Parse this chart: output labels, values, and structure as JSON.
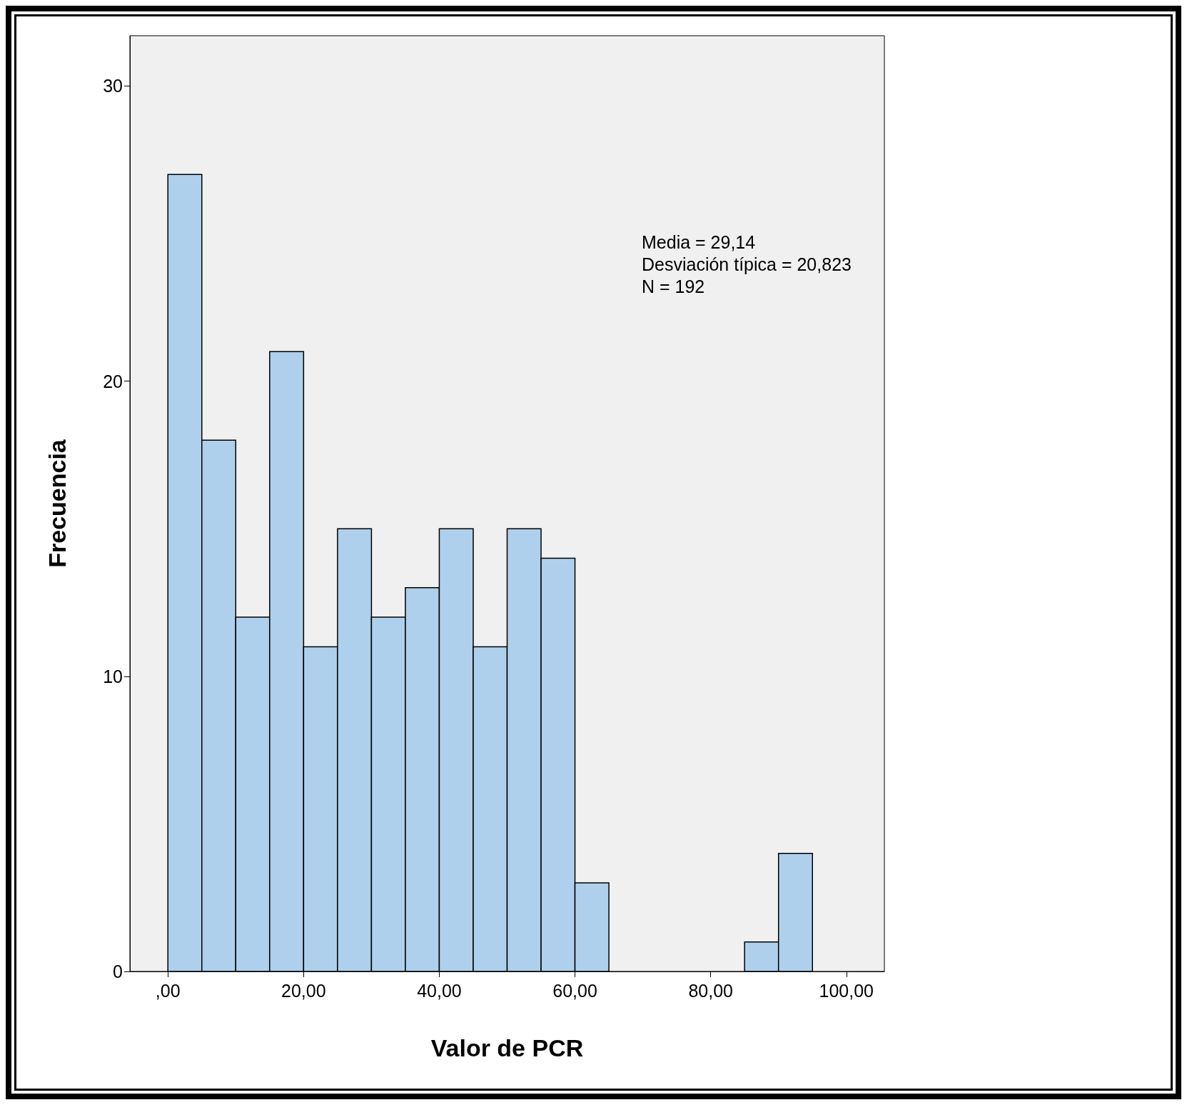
{
  "chart_data": {
    "type": "histogram",
    "xlabel": "Valor de PCR",
    "ylabel": "Frecuencia",
    "bins": [
      0,
      5,
      10,
      15,
      20,
      25,
      30,
      35,
      40,
      45,
      50,
      55,
      60,
      65,
      70,
      75,
      80,
      85,
      90,
      95
    ],
    "values": [
      27,
      18,
      12,
      21,
      11,
      15,
      12,
      13,
      15,
      11,
      15,
      14,
      3,
      0,
      0,
      0,
      0,
      1,
      4
    ],
    "color": "#aed0ed",
    "xlim": [
      -5.6,
      105.6
    ],
    "xticks": [
      {
        "value": 0,
        "label": ",00"
      },
      {
        "value": 20,
        "label": "20,00"
      },
      {
        "value": 40,
        "label": "40,00"
      },
      {
        "value": 60,
        "label": "60,00"
      },
      {
        "value": 80,
        "label": "80,00"
      },
      {
        "value": 100,
        "label": "100,00"
      }
    ],
    "ylim": [
      0,
      31.7
    ],
    "yticks": [
      0,
      10,
      20,
      30
    ],
    "annotations": [
      "Media = 29,14",
      "Desviación típica = 20,823",
      "N = 192"
    ],
    "grid": false
  }
}
